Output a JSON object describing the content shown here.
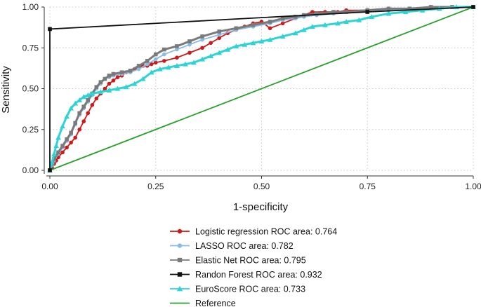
{
  "chart_data": {
    "type": "line",
    "title": "",
    "xlabel": "1-specificity",
    "ylabel": "Sensitivity",
    "xlim": [
      0,
      1
    ],
    "ylim": [
      0,
      1
    ],
    "x_ticks": [
      0,
      0.25,
      0.5,
      0.75,
      1
    ],
    "x_tick_labels": [
      "0.00",
      "0.25",
      "0.50",
      "0.75",
      "1.00"
    ],
    "y_ticks": [
      0,
      0.25,
      0.5,
      0.75,
      1
    ],
    "y_tick_labels": [
      "0.00",
      "0.25",
      "0.50",
      "0.75",
      "1.00"
    ],
    "grid": true,
    "legend_position": "bottom",
    "series": [
      {
        "name": "Logistic regression ROC area: 0.764",
        "color": "#cc1a1a",
        "marker": "circle",
        "x": [
          0,
          0.005,
          0.01,
          0.015,
          0.02,
          0.03,
          0.04,
          0.05,
          0.06,
          0.07,
          0.08,
          0.09,
          0.1,
          0.11,
          0.12,
          0.13,
          0.14,
          0.15,
          0.16,
          0.17,
          0.18,
          0.19,
          0.2,
          0.21,
          0.22,
          0.23,
          0.24,
          0.25,
          0.27,
          0.3,
          0.33,
          0.36,
          0.38,
          0.4,
          0.42,
          0.44,
          0.46,
          0.48,
          0.5,
          0.52,
          0.55,
          0.58,
          0.6,
          0.62,
          0.65,
          0.68,
          0.7,
          0.75,
          0.8,
          0.85,
          0.9,
          0.95,
          1
        ],
        "y": [
          0,
          0.02,
          0.04,
          0.06,
          0.08,
          0.11,
          0.14,
          0.17,
          0.2,
          0.25,
          0.3,
          0.35,
          0.4,
          0.44,
          0.47,
          0.5,
          0.53,
          0.55,
          0.57,
          0.58,
          0.6,
          0.61,
          0.62,
          0.63,
          0.64,
          0.64,
          0.65,
          0.66,
          0.67,
          0.69,
          0.72,
          0.75,
          0.78,
          0.81,
          0.84,
          0.86,
          0.88,
          0.9,
          0.91,
          0.87,
          0.9,
          0.93,
          0.95,
          0.97,
          0.97,
          0.97,
          0.98,
          0.98,
          0.99,
          0.99,
          1,
          1,
          1
        ]
      },
      {
        "name": "LASSO ROC area: 0.782",
        "color": "#88bbe6",
        "marker": "circle",
        "x": [
          0,
          0.005,
          0.01,
          0.02,
          0.03,
          0.04,
          0.05,
          0.06,
          0.07,
          0.08,
          0.09,
          0.1,
          0.11,
          0.12,
          0.13,
          0.14,
          0.15,
          0.17,
          0.19,
          0.21,
          0.23,
          0.25,
          0.27,
          0.3,
          0.33,
          0.36,
          0.4,
          0.44,
          0.48,
          0.52,
          0.55,
          0.58,
          0.6,
          0.63,
          0.67,
          0.7,
          0.75,
          0.8,
          0.85,
          0.9,
          0.95,
          1
        ],
        "y": [
          0,
          0.03,
          0.06,
          0.1,
          0.14,
          0.18,
          0.22,
          0.28,
          0.34,
          0.38,
          0.42,
          0.46,
          0.5,
          0.53,
          0.56,
          0.57,
          0.58,
          0.59,
          0.6,
          0.62,
          0.65,
          0.68,
          0.71,
          0.74,
          0.77,
          0.8,
          0.83,
          0.86,
          0.88,
          0.9,
          0.92,
          0.93,
          0.94,
          0.95,
          0.96,
          0.97,
          0.98,
          0.98,
          0.99,
          1,
          1,
          1
        ]
      },
      {
        "name": "Elastic Net ROC area: 0.795",
        "color": "#7a7a7a",
        "marker": "square",
        "x": [
          0,
          0.005,
          0.01,
          0.02,
          0.03,
          0.04,
          0.05,
          0.06,
          0.07,
          0.08,
          0.09,
          0.1,
          0.11,
          0.12,
          0.13,
          0.14,
          0.15,
          0.17,
          0.19,
          0.21,
          0.23,
          0.25,
          0.27,
          0.3,
          0.33,
          0.36,
          0.4,
          0.44,
          0.48,
          0.52,
          0.55,
          0.58,
          0.6,
          0.63,
          0.67,
          0.7,
          0.75,
          0.8,
          0.85,
          0.9,
          0.95,
          1
        ],
        "y": [
          0,
          0.04,
          0.07,
          0.11,
          0.15,
          0.19,
          0.23,
          0.29,
          0.35,
          0.39,
          0.43,
          0.47,
          0.51,
          0.54,
          0.56,
          0.58,
          0.59,
          0.6,
          0.61,
          0.64,
          0.67,
          0.71,
          0.74,
          0.76,
          0.79,
          0.82,
          0.85,
          0.87,
          0.89,
          0.91,
          0.93,
          0.94,
          0.95,
          0.96,
          0.97,
          0.97,
          0.98,
          0.99,
          0.99,
          1,
          1,
          1
        ]
      },
      {
        "name": "Randon Forest ROC area: 0.932",
        "color": "#111111",
        "marker": "square",
        "x": [
          0,
          0,
          0.75,
          1
        ],
        "y": [
          0,
          0.865,
          0.97,
          1
        ]
      },
      {
        "name": "EuroScore ROC area: 0.733",
        "color": "#2ed4d4",
        "marker": "triangle",
        "x": [
          0,
          0.005,
          0.01,
          0.015,
          0.02,
          0.03,
          0.04,
          0.05,
          0.06,
          0.07,
          0.08,
          0.09,
          0.1,
          0.12,
          0.14,
          0.16,
          0.18,
          0.2,
          0.22,
          0.24,
          0.26,
          0.28,
          0.3,
          0.32,
          0.34,
          0.36,
          0.38,
          0.4,
          0.42,
          0.44,
          0.46,
          0.48,
          0.5,
          0.52,
          0.55,
          0.58,
          0.6,
          0.62,
          0.65,
          0.68,
          0.7,
          0.73,
          0.76,
          0.8,
          0.84,
          0.88,
          0.92,
          0.96,
          1
        ],
        "y": [
          0,
          0.05,
          0.1,
          0.15,
          0.2,
          0.27,
          0.33,
          0.38,
          0.41,
          0.43,
          0.45,
          0.46,
          0.47,
          0.48,
          0.49,
          0.5,
          0.51,
          0.53,
          0.56,
          0.6,
          0.62,
          0.63,
          0.64,
          0.65,
          0.66,
          0.68,
          0.7,
          0.72,
          0.74,
          0.76,
          0.77,
          0.78,
          0.79,
          0.8,
          0.82,
          0.84,
          0.86,
          0.88,
          0.89,
          0.9,
          0.91,
          0.92,
          0.94,
          0.96,
          0.97,
          0.98,
          0.99,
          1,
          1
        ]
      },
      {
        "name": "Reference",
        "color": "#2aa02a",
        "marker": "none",
        "x": [
          0,
          1
        ],
        "y": [
          0,
          1
        ]
      }
    ]
  }
}
